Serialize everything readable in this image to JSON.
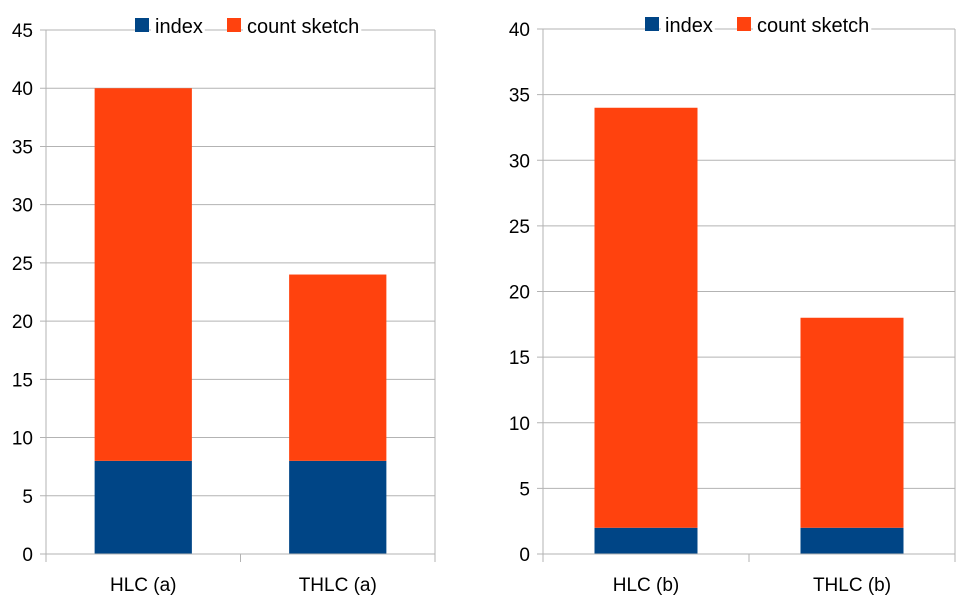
{
  "chart_data": [
    {
      "type": "bar",
      "stacked": true,
      "categories": [
        "HLC (a)",
        "THLC (a)"
      ],
      "series": [
        {
          "name": "index",
          "values": [
            8,
            8
          ],
          "color": "#004586"
        },
        {
          "name": "count sketch",
          "values": [
            32,
            16
          ],
          "color": "#ff420e"
        }
      ],
      "ylim": [
        0,
        45
      ],
      "ytick_step": 5,
      "yticks": [
        "0",
        "5",
        "10",
        "15",
        "20",
        "25",
        "30",
        "35",
        "40",
        "45"
      ],
      "grid": true,
      "legend_position": "top",
      "title": "",
      "xlabel": "",
      "ylabel": ""
    },
    {
      "type": "bar",
      "stacked": true,
      "categories": [
        "HLC (b)",
        "THLC (b)"
      ],
      "series": [
        {
          "name": "index",
          "values": [
            2,
            2
          ],
          "color": "#004586"
        },
        {
          "name": "count sketch",
          "values": [
            32,
            16
          ],
          "color": "#ff420e"
        }
      ],
      "ylim": [
        0,
        40
      ],
      "ytick_step": 5,
      "yticks": [
        "0",
        "5",
        "10",
        "15",
        "20",
        "25",
        "30",
        "35",
        "40"
      ],
      "grid": true,
      "legend_position": "top",
      "title": "",
      "xlabel": "",
      "ylabel": ""
    }
  ]
}
